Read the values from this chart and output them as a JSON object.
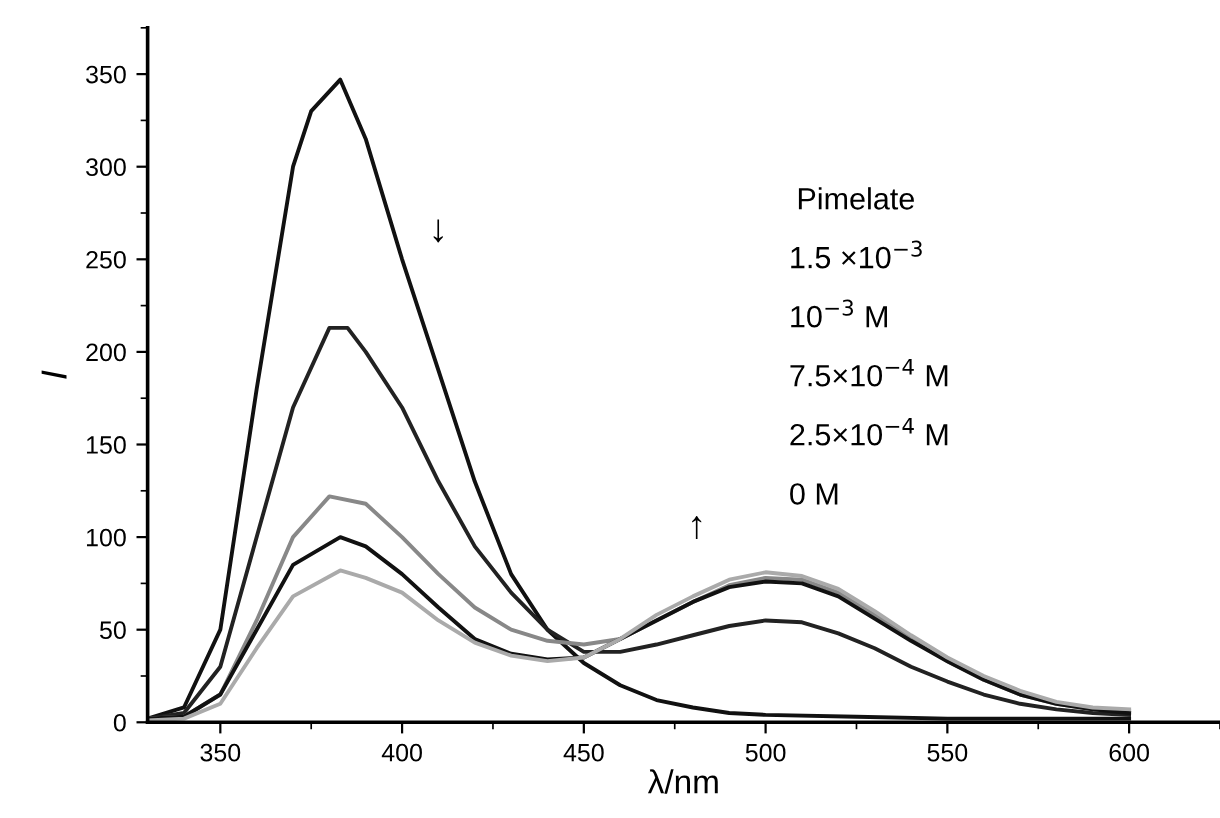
{
  "chart_data": {
    "type": "line",
    "xlabel": "λ/nm",
    "ylabel": "I",
    "xlim": [
      330,
      625
    ],
    "xticks": [
      350,
      400,
      450,
      500,
      550,
      600
    ],
    "ylim": [
      0,
      375
    ],
    "yticks": [
      0,
      50,
      100,
      150,
      200,
      250,
      300,
      350
    ],
    "grid": false,
    "marker": "none",
    "line_style": "solid",
    "series": [
      {
        "color": "#111111",
        "x": [
          330,
          340,
          350,
          360,
          370,
          375,
          383,
          390,
          400,
          410,
          420,
          430,
          440,
          450,
          460,
          470,
          480,
          490,
          500,
          525,
          550,
          575,
          600
        ],
        "values": [
          2,
          8,
          50,
          180,
          300,
          330,
          347,
          315,
          250,
          190,
          130,
          80,
          50,
          32,
          20,
          12,
          8,
          5,
          4,
          3,
          2,
          2,
          2
        ]
      },
      {
        "color": "#222222",
        "x": [
          330,
          340,
          350,
          360,
          370,
          380,
          385,
          390,
          400,
          410,
          420,
          430,
          440,
          450,
          460,
          470,
          480,
          490,
          500,
          510,
          520,
          530,
          540,
          550,
          560,
          570,
          580,
          590,
          600
        ],
        "values": [
          2,
          5,
          30,
          100,
          170,
          213,
          213,
          200,
          170,
          130,
          95,
          70,
          50,
          38,
          38,
          42,
          47,
          52,
          55,
          54,
          48,
          40,
          30,
          22,
          15,
          10,
          7,
          5,
          4
        ]
      },
      {
        "color": "#888888",
        "x": [
          330,
          340,
          350,
          360,
          370,
          380,
          390,
          400,
          410,
          420,
          430,
          440,
          450,
          460,
          470,
          480,
          490,
          500,
          510,
          520,
          530,
          540,
          550,
          560,
          570,
          580,
          590,
          600
        ],
        "values": [
          2,
          3,
          15,
          55,
          100,
          122,
          118,
          100,
          80,
          62,
          50,
          44,
          42,
          45,
          55,
          65,
          74,
          78,
          77,
          70,
          58,
          45,
          33,
          23,
          15,
          10,
          7,
          6
        ]
      },
      {
        "color": "#111111",
        "x": [
          330,
          340,
          350,
          360,
          370,
          383,
          390,
          400,
          410,
          420,
          430,
          440,
          450,
          460,
          470,
          480,
          490,
          500,
          510,
          520,
          530,
          540,
          550,
          560,
          570,
          580,
          590,
          600
        ],
        "values": [
          2,
          3,
          15,
          50,
          85,
          100,
          95,
          80,
          62,
          45,
          37,
          34,
          35,
          45,
          55,
          65,
          73,
          76,
          75,
          68,
          56,
          44,
          33,
          23,
          15,
          10,
          7,
          5
        ]
      },
      {
        "color": "#aaaaaa",
        "x": [
          330,
          340,
          350,
          360,
          370,
          383,
          390,
          400,
          410,
          420,
          430,
          440,
          450,
          460,
          470,
          480,
          490,
          500,
          510,
          520,
          530,
          540,
          550,
          560,
          570,
          580,
          590,
          600
        ],
        "values": [
          1,
          2,
          10,
          40,
          68,
          82,
          78,
          70,
          55,
          43,
          36,
          33,
          35,
          45,
          58,
          68,
          77,
          81,
          79,
          72,
          60,
          47,
          35,
          25,
          17,
          11,
          8,
          7
        ]
      }
    ],
    "annotations": [
      "↓",
      "↑",
      "Pimelate",
      "1.5 ×10$^{−3}$",
      "10$^{−3}$ M",
      "7.5×10$^{−4}$ M",
      "2.5×10$^{−4}$ M",
      "0 M"
    ]
  }
}
